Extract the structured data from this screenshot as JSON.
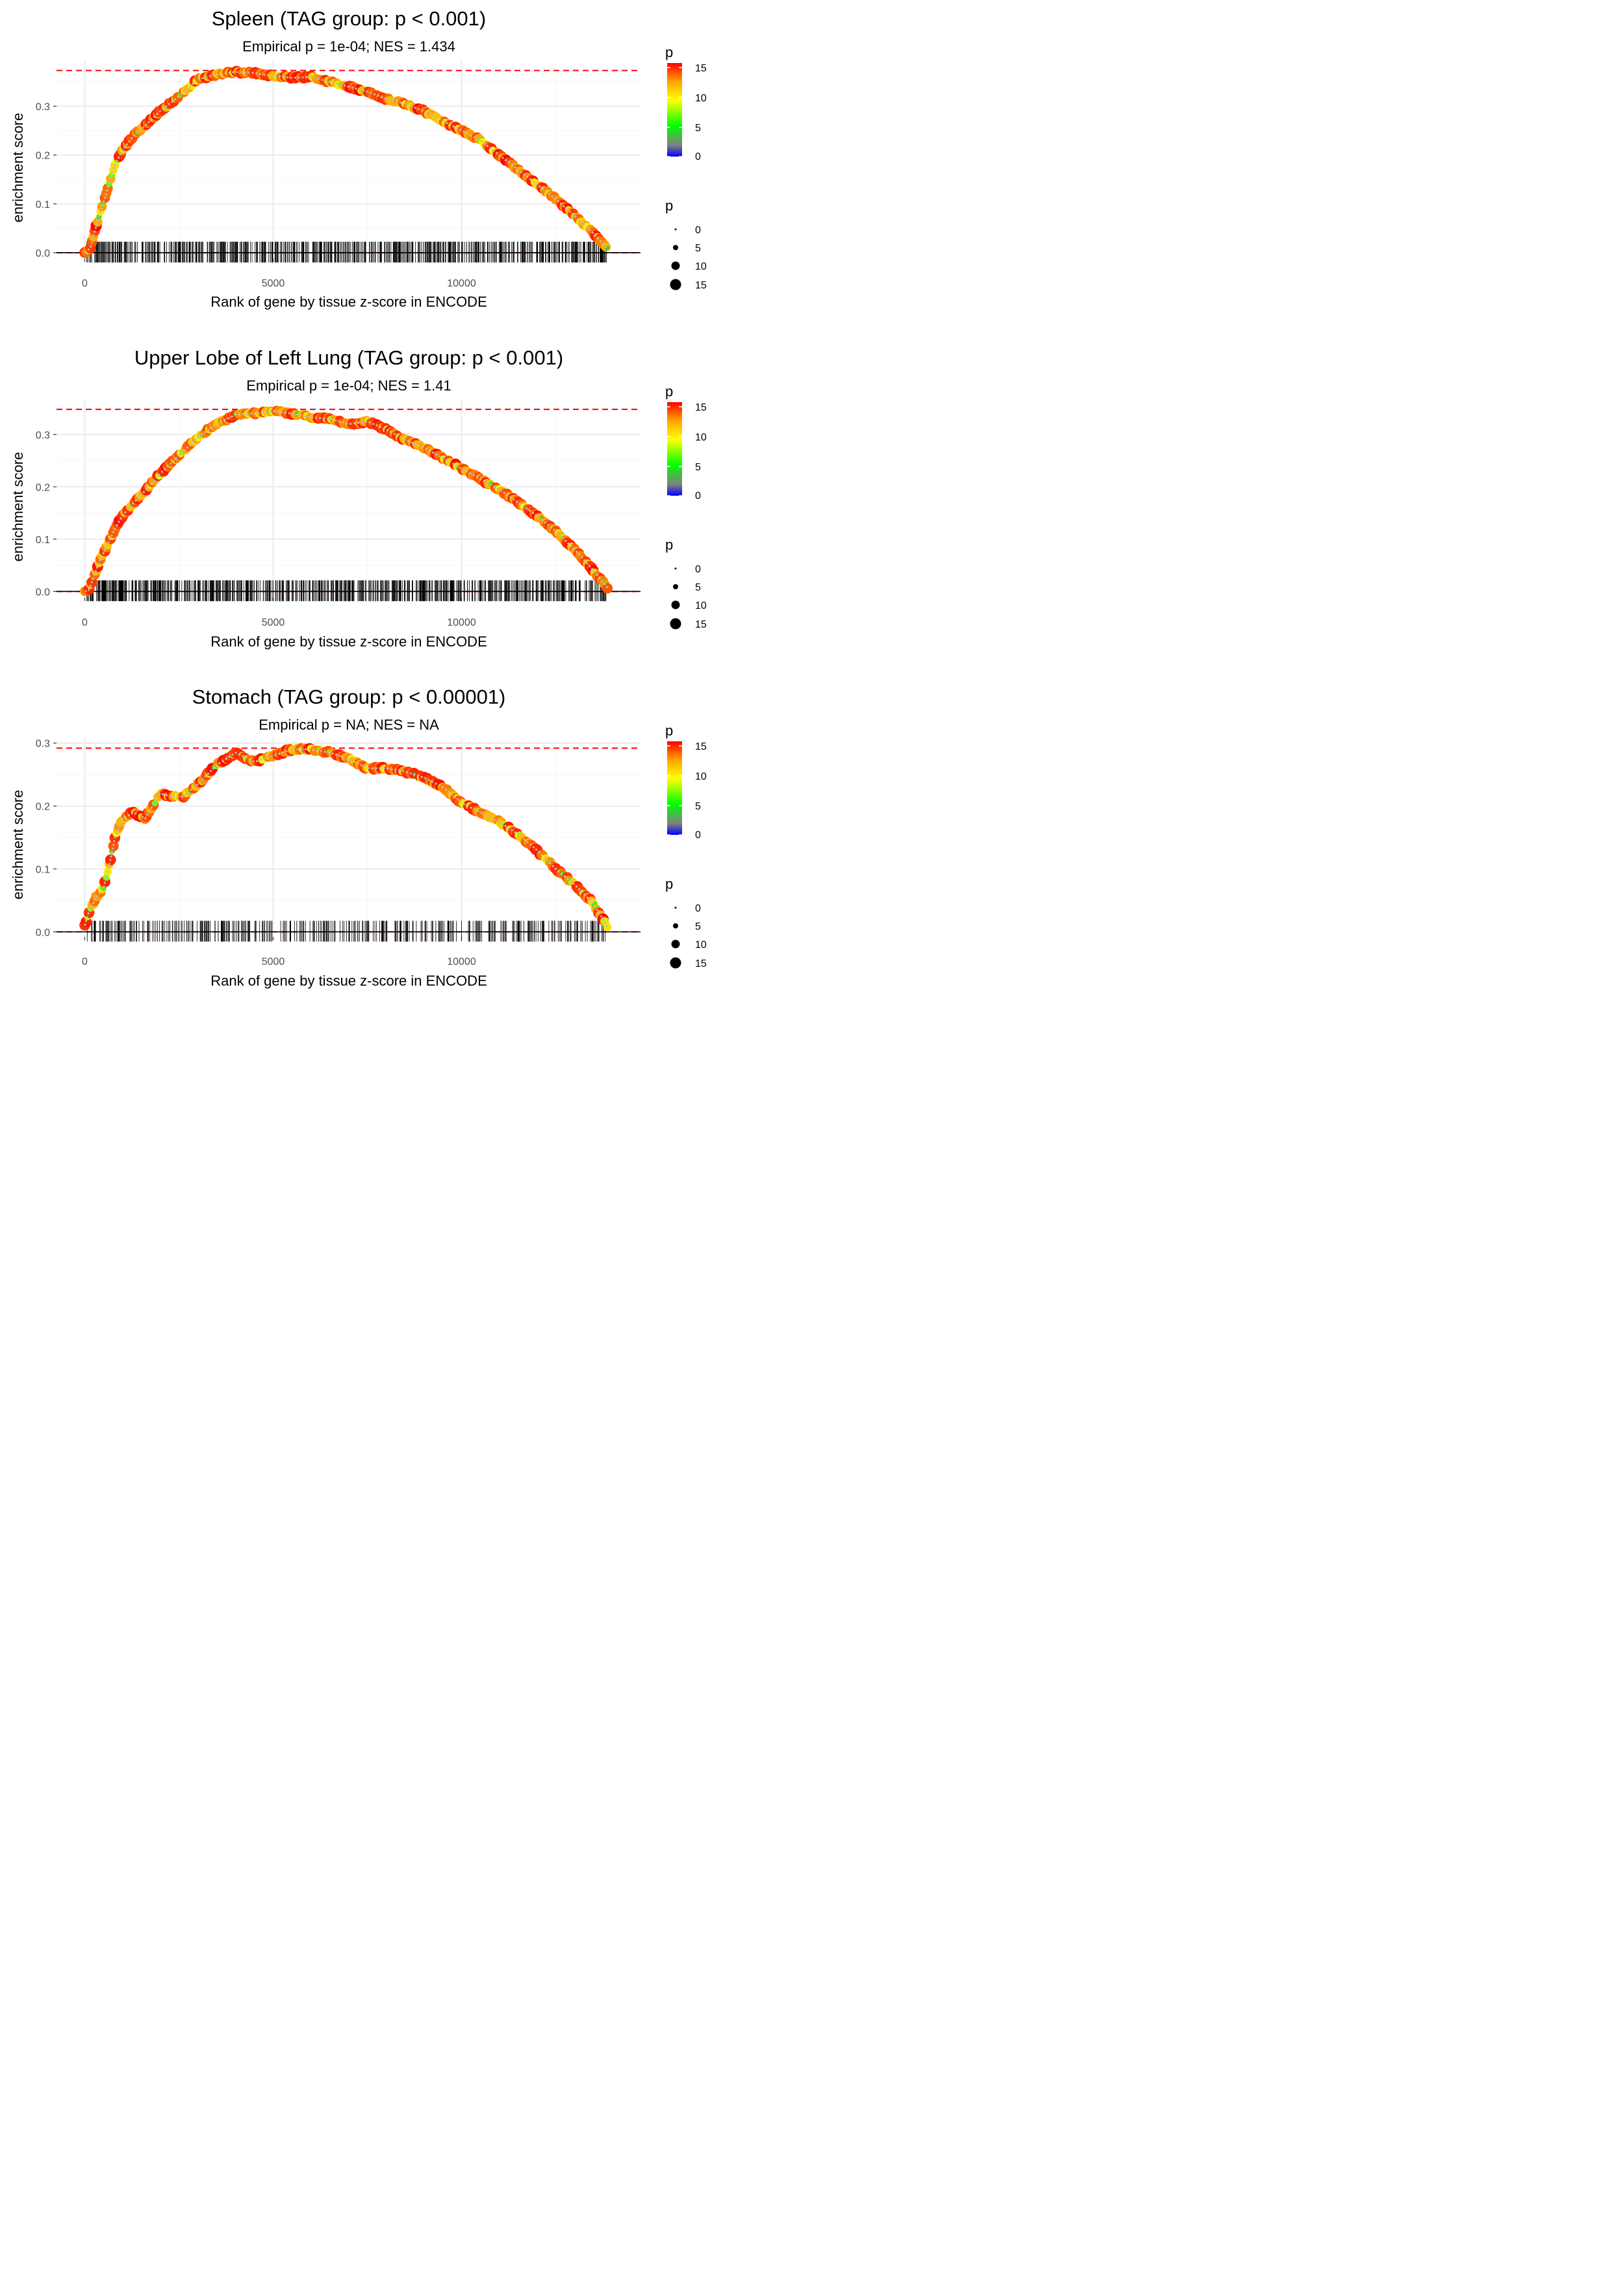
{
  "colors": {
    "dots": [
      "#0000ff",
      "#808080",
      "#00ff00",
      "#ffff00",
      "#ffa500",
      "#ff0000"
    ],
    "ref_line": "#ff0000",
    "zero_line": "#000000",
    "grid": "#ebebeb",
    "curve": "#bdbdbd"
  },
  "chart_data": [
    {
      "type": "scatter",
      "title": "Spleen (TAG group: p < 0.001)",
      "subtitle": "Empirical p = 1e-04; NES = 1.434",
      "xlabel": "Rank of gene by tissue z-score in ENCODE",
      "ylabel": "enrichment score",
      "xlim": [
        -750,
        14750
      ],
      "ylim": [
        -0.012,
        0.395
      ],
      "x_ticks": [
        0,
        5000,
        10000
      ],
      "x_tick_labels": [
        "0",
        "5000",
        "10000"
      ],
      "y_ticks": [
        0.0,
        0.1,
        0.2,
        0.3
      ],
      "y_tick_labels": [
        "0.0",
        "0.1",
        "0.2",
        "0.3"
      ],
      "max_es": 0.373,
      "n_hits": 720,
      "hit_seed": 11,
      "curve": [
        [
          0,
          0
        ],
        [
          150,
          0.01
        ],
        [
          250,
          0.04
        ],
        [
          400,
          0.08
        ],
        [
          600,
          0.13
        ],
        [
          800,
          0.18
        ],
        [
          1000,
          0.21
        ],
        [
          1300,
          0.24
        ],
        [
          1600,
          0.26
        ],
        [
          2000,
          0.29
        ],
        [
          2500,
          0.32
        ],
        [
          3000,
          0.355
        ],
        [
          3500,
          0.365
        ],
        [
          4000,
          0.37
        ],
        [
          4500,
          0.368
        ],
        [
          5000,
          0.362
        ],
        [
          5500,
          0.358
        ],
        [
          6000,
          0.36
        ],
        [
          6500,
          0.35
        ],
        [
          7000,
          0.34
        ],
        [
          7500,
          0.33
        ],
        [
          8000,
          0.315
        ],
        [
          8500,
          0.305
        ],
        [
          9000,
          0.29
        ],
        [
          9500,
          0.27
        ],
        [
          10000,
          0.25
        ],
        [
          10500,
          0.23
        ],
        [
          11000,
          0.2
        ],
        [
          11500,
          0.17
        ],
        [
          12000,
          0.14
        ],
        [
          12500,
          0.11
        ],
        [
          13000,
          0.075
        ],
        [
          13500,
          0.04
        ],
        [
          13900,
          0.005
        ]
      ],
      "legend_color": {
        "title": "p",
        "ticks": [
          0,
          5,
          10,
          15
        ],
        "tick_labels": [
          "0",
          "5",
          "10",
          "15"
        ]
      },
      "legend_size": {
        "title": "p",
        "labels": [
          "0",
          "5",
          "10",
          "15"
        ]
      }
    },
    {
      "type": "scatter",
      "title": "Upper Lobe of Left Lung (TAG group: p < 0.001)",
      "subtitle": "Empirical p = 1e-04; NES = 1.41",
      "xlabel": "Rank of gene by tissue z-score in ENCODE",
      "ylabel": "enrichment score",
      "xlim": [
        -750,
        14750
      ],
      "ylim": [
        -0.012,
        0.368
      ],
      "x_ticks": [
        0,
        5000,
        10000
      ],
      "x_tick_labels": [
        "0",
        "5000",
        "10000"
      ],
      "y_ticks": [
        0.0,
        0.1,
        0.2,
        0.3
      ],
      "y_tick_labels": [
        "0.0",
        "0.1",
        "0.2",
        "0.3"
      ],
      "max_es": 0.348,
      "n_hits": 760,
      "hit_seed": 23,
      "curve": [
        [
          0,
          0
        ],
        [
          100,
          0.002
        ],
        [
          200,
          0.02
        ],
        [
          350,
          0.05
        ],
        [
          600,
          0.09
        ],
        [
          800,
          0.12
        ],
        [
          1000,
          0.145
        ],
        [
          1300,
          0.17
        ],
        [
          1700,
          0.2
        ],
        [
          2000,
          0.225
        ],
        [
          2500,
          0.26
        ],
        [
          3000,
          0.295
        ],
        [
          3500,
          0.32
        ],
        [
          4000,
          0.338
        ],
        [
          4500,
          0.34
        ],
        [
          5000,
          0.345
        ],
        [
          5500,
          0.34
        ],
        [
          6000,
          0.333
        ],
        [
          6500,
          0.33
        ],
        [
          7000,
          0.32
        ],
        [
          7500,
          0.325
        ],
        [
          8000,
          0.31
        ],
        [
          8500,
          0.29
        ],
        [
          9000,
          0.275
        ],
        [
          9500,
          0.255
        ],
        [
          10000,
          0.235
        ],
        [
          10500,
          0.215
        ],
        [
          11000,
          0.195
        ],
        [
          11500,
          0.17
        ],
        [
          12000,
          0.145
        ],
        [
          12500,
          0.115
        ],
        [
          13000,
          0.08
        ],
        [
          13500,
          0.04
        ],
        [
          13900,
          0.005
        ]
      ],
      "legend_color": {
        "title": "p",
        "ticks": [
          0,
          5,
          10,
          15
        ],
        "tick_labels": [
          "0",
          "5",
          "10",
          "15"
        ]
      },
      "legend_size": {
        "title": "p",
        "labels": [
          "0",
          "5",
          "10",
          "15"
        ]
      }
    },
    {
      "type": "scatter",
      "title": "Stomach (TAG group: p < 0.00001)",
      "subtitle": "Empirical p = NA; NES = NA",
      "xlabel": "Rank of gene by tissue z-score in ENCODE",
      "ylabel": "enrichment score",
      "xlim": [
        -750,
        14750
      ],
      "ylim": [
        -0.008,
        0.308
      ],
      "x_ticks": [
        0,
        5000,
        10000
      ],
      "x_tick_labels": [
        "0",
        "5000",
        "10000"
      ],
      "y_ticks": [
        0.0,
        0.1,
        0.2,
        0.3
      ],
      "y_tick_labels": [
        "0.0",
        "0.1",
        "0.2",
        "0.3"
      ],
      "max_es": 0.292,
      "n_hits": 420,
      "hit_seed": 37,
      "curve": [
        [
          0,
          0.01
        ],
        [
          100,
          0.03
        ],
        [
          300,
          0.055
        ],
        [
          500,
          0.07
        ],
        [
          700,
          0.12
        ],
        [
          800,
          0.15
        ],
        [
          1000,
          0.18
        ],
        [
          1300,
          0.19
        ],
        [
          1600,
          0.18
        ],
        [
          2000,
          0.22
        ],
        [
          2300,
          0.215
        ],
        [
          2600,
          0.215
        ],
        [
          3000,
          0.235
        ],
        [
          3500,
          0.265
        ],
        [
          4000,
          0.285
        ],
        [
          4500,
          0.27
        ],
        [
          5000,
          0.28
        ],
        [
          5500,
          0.29
        ],
        [
          6000,
          0.29
        ],
        [
          6500,
          0.285
        ],
        [
          7000,
          0.275
        ],
        [
          7500,
          0.26
        ],
        [
          8000,
          0.26
        ],
        [
          8500,
          0.255
        ],
        [
          9000,
          0.245
        ],
        [
          9500,
          0.23
        ],
        [
          10000,
          0.205
        ],
        [
          10500,
          0.19
        ],
        [
          11000,
          0.175
        ],
        [
          11500,
          0.155
        ],
        [
          12000,
          0.13
        ],
        [
          12500,
          0.1
        ],
        [
          13000,
          0.075
        ],
        [
          13500,
          0.045
        ],
        [
          13900,
          0.005
        ]
      ],
      "legend_color": {
        "title": "p",
        "ticks": [
          0,
          5,
          10,
          15
        ],
        "tick_labels": [
          "0",
          "5",
          "10",
          "15"
        ]
      },
      "legend_size": {
        "title": "p",
        "labels": [
          "0",
          "5",
          "10",
          "15"
        ]
      }
    }
  ]
}
